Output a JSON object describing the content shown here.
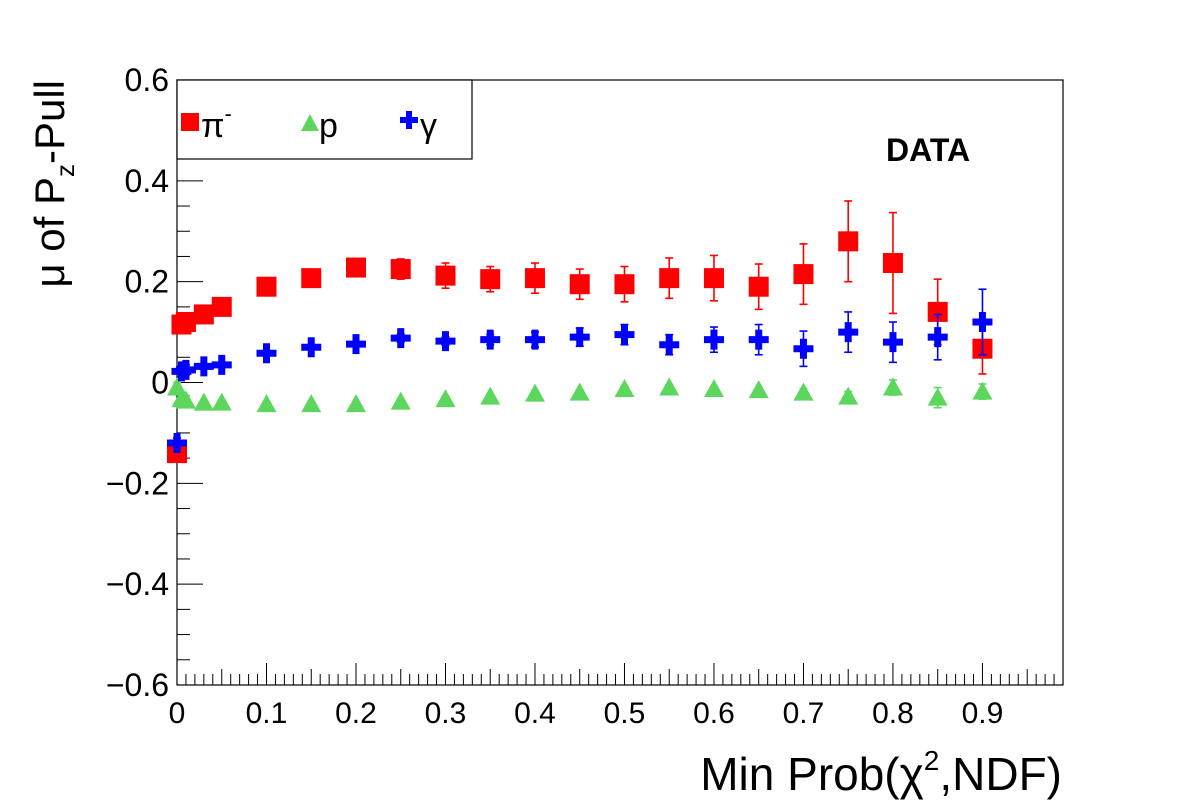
{
  "chart_data": {
    "type": "scatter",
    "xlabel_prefix": "Min Prob(",
    "xlabel_chi": "χ",
    "xlabel_sup": "2",
    "xlabel_suffix": ",NDF)",
    "ylabel_prefix": "μ of P",
    "ylabel_sub": "z",
    "ylabel_suffix": "-Pull",
    "annotation": "DATA",
    "xlim": [
      0,
      0.99
    ],
    "ylim": [
      -0.6,
      0.6
    ],
    "x_ticks": [
      {
        "v": 0,
        "label": "0"
      },
      {
        "v": 0.1,
        "label": "0.1"
      },
      {
        "v": 0.2,
        "label": "0.2"
      },
      {
        "v": 0.3,
        "label": "0.3"
      },
      {
        "v": 0.4,
        "label": "0.4"
      },
      {
        "v": 0.5,
        "label": "0.5"
      },
      {
        "v": 0.6,
        "label": "0.6"
      },
      {
        "v": 0.7,
        "label": "0.7"
      },
      {
        "v": 0.8,
        "label": "0.8"
      },
      {
        "v": 0.9,
        "label": "0.9"
      }
    ],
    "y_ticks": [
      {
        "v": 0.6,
        "label": "0.6"
      },
      {
        "v": 0.4,
        "label": "0.4"
      },
      {
        "v": 0.2,
        "label": "0.2"
      },
      {
        "v": 0,
        "label": "0"
      },
      {
        "v": -0.2,
        "label": "−0.2"
      },
      {
        "v": -0.4,
        "label": "−0.4"
      },
      {
        "v": -0.6,
        "label": "−0.6"
      }
    ],
    "grid": false,
    "legend_position": "top-left",
    "series": [
      {
        "name": "π",
        "name_sup": "-",
        "marker": "square",
        "color": "#ff0000",
        "points": [
          {
            "x": 0.0,
            "y": -0.14,
            "err": 0.01
          },
          {
            "x": 0.005,
            "y": 0.115,
            "err": 0.01
          },
          {
            "x": 0.01,
            "y": 0.12,
            "err": 0.01
          },
          {
            "x": 0.03,
            "y": 0.135,
            "err": 0.01
          },
          {
            "x": 0.05,
            "y": 0.15,
            "err": 0.01
          },
          {
            "x": 0.1,
            "y": 0.19,
            "err": 0.01
          },
          {
            "x": 0.15,
            "y": 0.207,
            "err": 0.01
          },
          {
            "x": 0.2,
            "y": 0.228,
            "err": 0.015
          },
          {
            "x": 0.25,
            "y": 0.225,
            "err": 0.02
          },
          {
            "x": 0.3,
            "y": 0.212,
            "err": 0.025
          },
          {
            "x": 0.35,
            "y": 0.205,
            "err": 0.025
          },
          {
            "x": 0.4,
            "y": 0.207,
            "err": 0.03
          },
          {
            "x": 0.45,
            "y": 0.195,
            "err": 0.03
          },
          {
            "x": 0.5,
            "y": 0.195,
            "err": 0.035
          },
          {
            "x": 0.55,
            "y": 0.207,
            "err": 0.04
          },
          {
            "x": 0.6,
            "y": 0.207,
            "err": 0.045
          },
          {
            "x": 0.65,
            "y": 0.19,
            "err": 0.045
          },
          {
            "x": 0.7,
            "y": 0.215,
            "err": 0.06
          },
          {
            "x": 0.75,
            "y": 0.28,
            "err": 0.08
          },
          {
            "x": 0.8,
            "y": 0.237,
            "err": 0.1
          },
          {
            "x": 0.85,
            "y": 0.14,
            "err": 0.065
          },
          {
            "x": 0.9,
            "y": 0.067,
            "err": 0.05
          }
        ]
      },
      {
        "name": "p",
        "marker": "triangle",
        "color": "#5cd65c",
        "points": [
          {
            "x": 0.0,
            "y": -0.01,
            "err": 0.01
          },
          {
            "x": 0.005,
            "y": -0.033,
            "err": 0.01
          },
          {
            "x": 0.01,
            "y": -0.036,
            "err": 0.01
          },
          {
            "x": 0.03,
            "y": -0.04,
            "err": 0.005
          },
          {
            "x": 0.05,
            "y": -0.04,
            "err": 0.005
          },
          {
            "x": 0.1,
            "y": -0.043,
            "err": 0.005
          },
          {
            "x": 0.15,
            "y": -0.043,
            "err": 0.005
          },
          {
            "x": 0.2,
            "y": -0.043,
            "err": 0.005
          },
          {
            "x": 0.25,
            "y": -0.038,
            "err": 0.005
          },
          {
            "x": 0.3,
            "y": -0.033,
            "err": 0.005
          },
          {
            "x": 0.35,
            "y": -0.028,
            "err": 0.005
          },
          {
            "x": 0.4,
            "y": -0.022,
            "err": 0.005
          },
          {
            "x": 0.45,
            "y": -0.02,
            "err": 0.005
          },
          {
            "x": 0.5,
            "y": -0.013,
            "err": 0.005
          },
          {
            "x": 0.55,
            "y": -0.01,
            "err": 0.005
          },
          {
            "x": 0.6,
            "y": -0.013,
            "err": 0.005
          },
          {
            "x": 0.65,
            "y": -0.015,
            "err": 0.005
          },
          {
            "x": 0.7,
            "y": -0.02,
            "err": 0.008
          },
          {
            "x": 0.75,
            "y": -0.028,
            "err": 0.01
          },
          {
            "x": 0.8,
            "y": -0.01,
            "err": 0.015
          },
          {
            "x": 0.85,
            "y": -0.03,
            "err": 0.02
          },
          {
            "x": 0.9,
            "y": -0.018,
            "err": 0.015
          }
        ]
      },
      {
        "name": "γ",
        "marker": "cross",
        "color": "#0000ff",
        "points": [
          {
            "x": 0.0,
            "y": -0.12,
            "err": 0.01
          },
          {
            "x": 0.005,
            "y": 0.022,
            "err": 0.01
          },
          {
            "x": 0.01,
            "y": 0.025,
            "err": 0.01
          },
          {
            "x": 0.03,
            "y": 0.032,
            "err": 0.005
          },
          {
            "x": 0.05,
            "y": 0.035,
            "err": 0.005
          },
          {
            "x": 0.1,
            "y": 0.058,
            "err": 0.005
          },
          {
            "x": 0.15,
            "y": 0.07,
            "err": 0.005
          },
          {
            "x": 0.2,
            "y": 0.076,
            "err": 0.005
          },
          {
            "x": 0.25,
            "y": 0.088,
            "err": 0.008
          },
          {
            "x": 0.3,
            "y": 0.082,
            "err": 0.008
          },
          {
            "x": 0.35,
            "y": 0.085,
            "err": 0.01
          },
          {
            "x": 0.4,
            "y": 0.085,
            "err": 0.015
          },
          {
            "x": 0.45,
            "y": 0.09,
            "err": 0.018
          },
          {
            "x": 0.5,
            "y": 0.095,
            "err": 0.02
          },
          {
            "x": 0.55,
            "y": 0.075,
            "err": 0.02
          },
          {
            "x": 0.6,
            "y": 0.085,
            "err": 0.025
          },
          {
            "x": 0.65,
            "y": 0.085,
            "err": 0.03
          },
          {
            "x": 0.7,
            "y": 0.067,
            "err": 0.035
          },
          {
            "x": 0.75,
            "y": 0.1,
            "err": 0.04
          },
          {
            "x": 0.8,
            "y": 0.08,
            "err": 0.04
          },
          {
            "x": 0.85,
            "y": 0.09,
            "err": 0.045
          },
          {
            "x": 0.9,
            "y": 0.12,
            "err": 0.065
          }
        ]
      }
    ]
  }
}
